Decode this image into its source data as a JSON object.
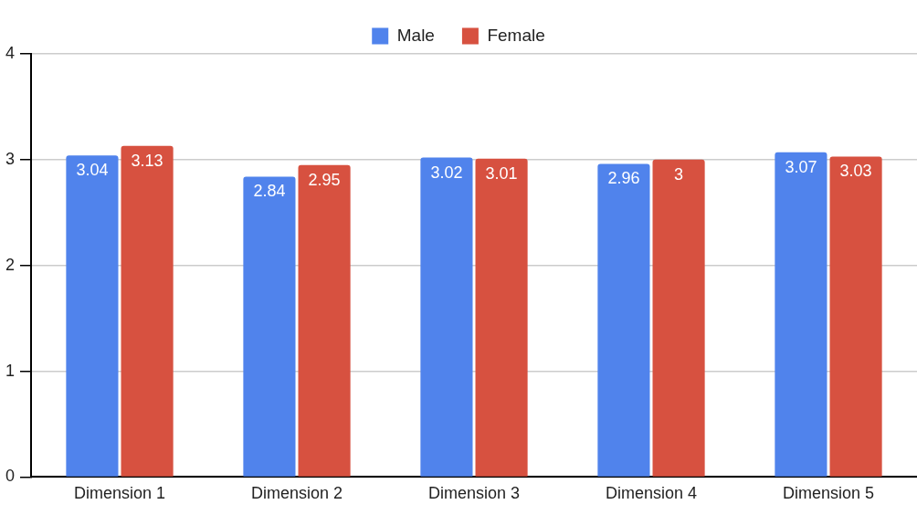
{
  "chart_data": {
    "type": "bar",
    "categories": [
      "Dimension 1",
      "Dimension 2",
      "Dimension 3",
      "Dimension 4",
      "Dimension 5"
    ],
    "series": [
      {
        "name": "Male",
        "color": "#5083ec",
        "values": [
          3.04,
          2.84,
          3.02,
          2.96,
          3.07
        ]
      },
      {
        "name": "Female",
        "color": "#d75140",
        "values": [
          3.13,
          2.95,
          3.01,
          3,
          3.03
        ]
      }
    ],
    "ylim": [
      0,
      4
    ],
    "yticks": [
      0,
      1,
      2,
      3,
      4
    ],
    "grid": "y",
    "legend": "top",
    "data_labels": true
  }
}
